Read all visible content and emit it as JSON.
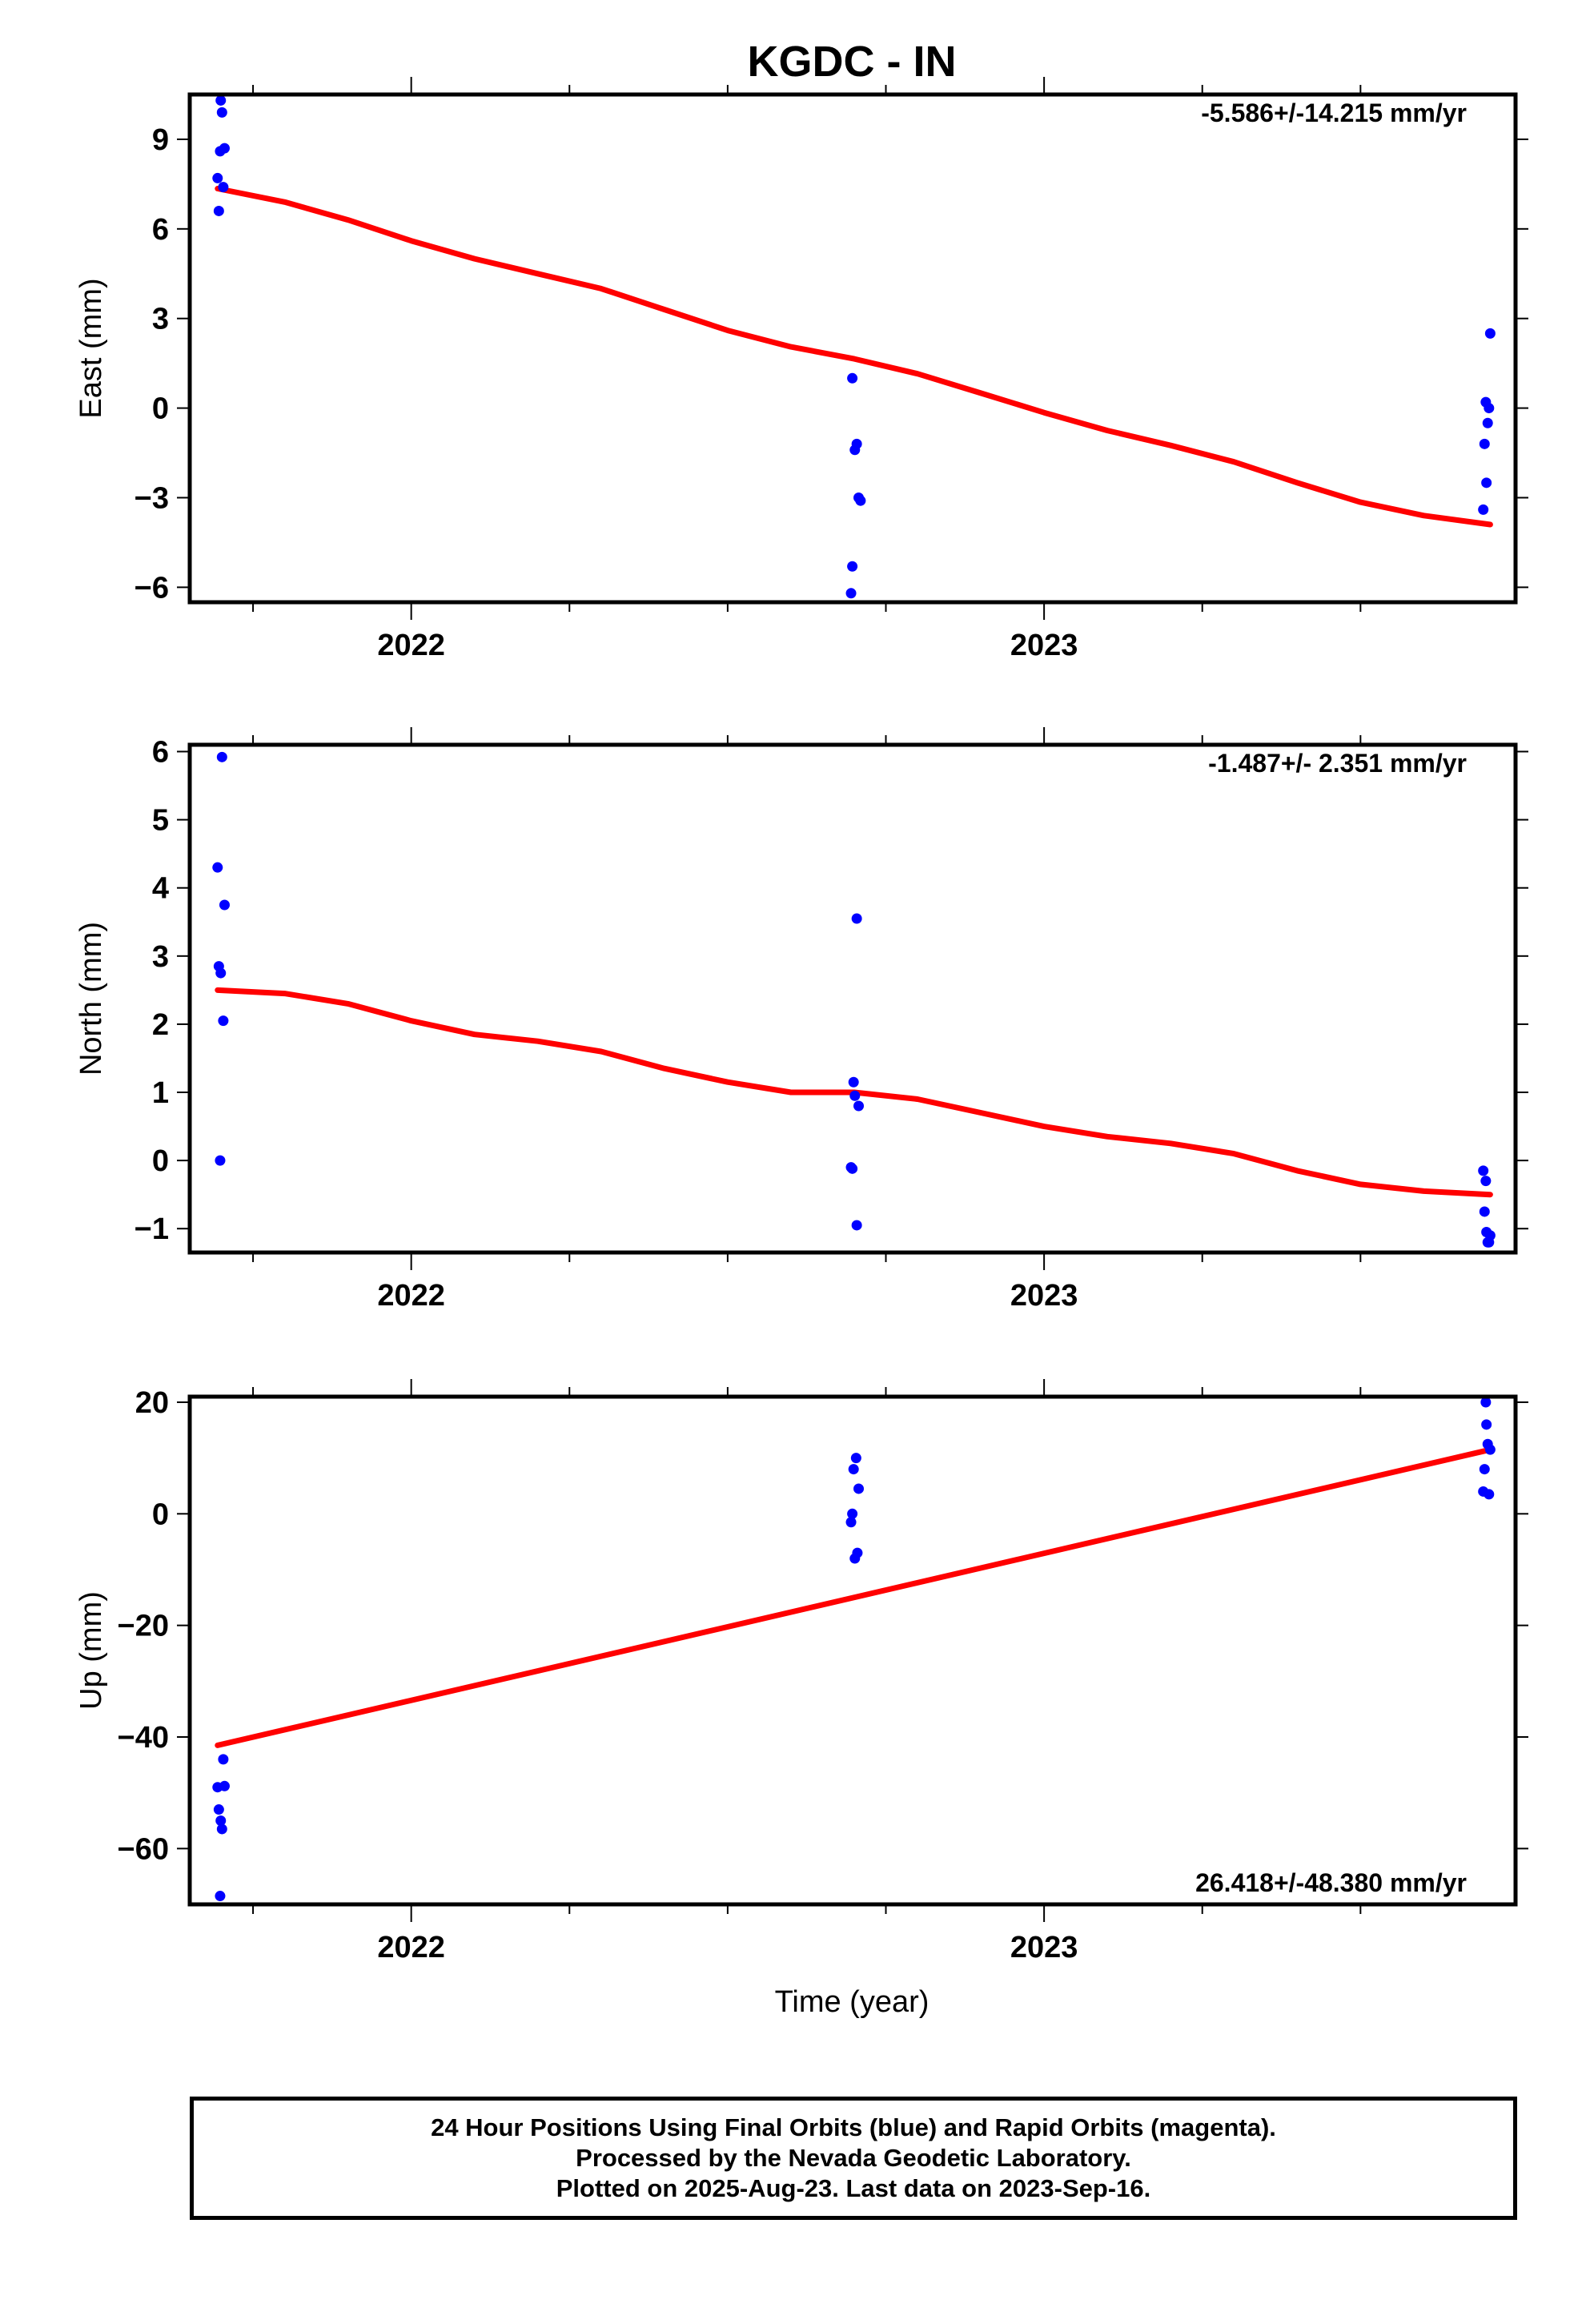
{
  "title": "KGDC - IN",
  "xlabel": "Time (year)",
  "footer": {
    "line1": "24 Hour Positions Using Final Orbits (blue) and Rapid Orbits (magenta).",
    "line2": "Processed by the Nevada Geodetic Laboratory.",
    "line3": "Plotted on 2025-Aug-23. Last data on 2023-Sep-16."
  },
  "colors": {
    "points": "#0000ff",
    "fit": "#ff0000",
    "axes": "#000000"
  },
  "chart_data": [
    {
      "type": "scatter",
      "panel": "east",
      "ylabel": "East (mm)",
      "rate_label": "-5.586+/-14.215 mm/yr",
      "rate_position": "top-right",
      "xlim": [
        2021.65,
        2023.745
      ],
      "ylim": [
        -6.5,
        10.5
      ],
      "x_ticks": [
        2022,
        2023
      ],
      "y_ticks": [
        9,
        6,
        3,
        0,
        -3,
        -6
      ],
      "y_tick_labels": [
        "9",
        "6",
        "3",
        "0",
        "−3",
        "−6"
      ],
      "points": [
        [
          2021.694,
          7.7
        ],
        [
          2021.696,
          6.6
        ],
        [
          2021.698,
          8.6
        ],
        [
          2021.699,
          10.3
        ],
        [
          2021.701,
          9.9
        ],
        [
          2021.703,
          7.4
        ],
        [
          2021.705,
          8.7
        ],
        [
          2022.697,
          1.0
        ],
        [
          2022.701,
          -1.4
        ],
        [
          2022.704,
          -1.2
        ],
        [
          2022.707,
          -3.0
        ],
        [
          2022.71,
          -3.1
        ],
        [
          2022.697,
          -5.3
        ],
        [
          2022.695,
          -6.2
        ],
        [
          2023.694,
          -3.4
        ],
        [
          2023.696,
          -1.2
        ],
        [
          2023.698,
          0.2
        ],
        [
          2023.699,
          -2.5
        ],
        [
          2023.701,
          -0.5
        ],
        [
          2023.703,
          0.0
        ],
        [
          2023.705,
          2.5
        ]
      ],
      "fit": [
        [
          2021.694,
          7.35
        ],
        [
          2021.8,
          6.9
        ],
        [
          2021.9,
          6.3
        ],
        [
          2022.0,
          5.6
        ],
        [
          2022.1,
          5.0
        ],
        [
          2022.2,
          4.5
        ],
        [
          2022.3,
          4.0
        ],
        [
          2022.4,
          3.3
        ],
        [
          2022.5,
          2.6
        ],
        [
          2022.6,
          2.05
        ],
        [
          2022.7,
          1.65
        ],
        [
          2022.8,
          1.15
        ],
        [
          2022.9,
          0.5
        ],
        [
          2023.0,
          -0.15
        ],
        [
          2023.1,
          -0.75
        ],
        [
          2023.2,
          -1.25
        ],
        [
          2023.3,
          -1.8
        ],
        [
          2023.4,
          -2.5
        ],
        [
          2023.5,
          -3.15
        ],
        [
          2023.6,
          -3.6
        ],
        [
          2023.705,
          -3.9
        ]
      ]
    },
    {
      "type": "scatter",
      "panel": "north",
      "ylabel": "North (mm)",
      "rate_label": "-1.487+/- 2.351 mm/yr",
      "rate_position": "top-right",
      "xlim": [
        2021.65,
        2023.745
      ],
      "ylim": [
        -1.35,
        6.1
      ],
      "x_ticks": [
        2022,
        2023
      ],
      "y_ticks": [
        6,
        5,
        4,
        3,
        2,
        1,
        0,
        -1
      ],
      "y_tick_labels": [
        "6",
        "5",
        "4",
        "3",
        "2",
        "1",
        "0",
        "−1"
      ],
      "points": [
        [
          2021.694,
          4.3
        ],
        [
          2021.696,
          2.85
        ],
        [
          2021.698,
          0.0
        ],
        [
          2021.699,
          2.75
        ],
        [
          2021.701,
          5.92
        ],
        [
          2021.703,
          2.05
        ],
        [
          2021.705,
          3.75
        ],
        [
          2022.695,
          -0.1
        ],
        [
          2022.697,
          -0.12
        ],
        [
          2022.699,
          1.15
        ],
        [
          2022.701,
          0.95
        ],
        [
          2022.704,
          3.55
        ],
        [
          2022.707,
          0.8
        ],
        [
          2022.704,
          -0.95
        ],
        [
          2023.694,
          -0.15
        ],
        [
          2023.696,
          -0.75
        ],
        [
          2023.698,
          -0.3
        ],
        [
          2023.699,
          -1.05
        ],
        [
          2023.701,
          -1.2
        ],
        [
          2023.703,
          -1.2
        ],
        [
          2023.705,
          -1.1
        ]
      ],
      "fit": [
        [
          2021.694,
          2.5
        ],
        [
          2021.8,
          2.45
        ],
        [
          2021.9,
          2.3
        ],
        [
          2022.0,
          2.05
        ],
        [
          2022.1,
          1.85
        ],
        [
          2022.2,
          1.75
        ],
        [
          2022.3,
          1.6
        ],
        [
          2022.4,
          1.35
        ],
        [
          2022.5,
          1.15
        ],
        [
          2022.6,
          1.0
        ],
        [
          2022.7,
          1.0
        ],
        [
          2022.8,
          0.9
        ],
        [
          2022.9,
          0.7
        ],
        [
          2023.0,
          0.5
        ],
        [
          2023.1,
          0.35
        ],
        [
          2023.2,
          0.25
        ],
        [
          2023.3,
          0.1
        ],
        [
          2023.4,
          -0.15
        ],
        [
          2023.5,
          -0.35
        ],
        [
          2023.6,
          -0.45
        ],
        [
          2023.705,
          -0.5
        ]
      ]
    },
    {
      "type": "scatter",
      "panel": "up",
      "ylabel": "Up (mm)",
      "rate_label": "26.418+/-48.380 mm/yr",
      "rate_position": "bottom-right",
      "xlim": [
        2021.65,
        2023.745
      ],
      "ylim": [
        -70,
        21
      ],
      "x_ticks": [
        2022,
        2023
      ],
      "y_ticks": [
        20,
        0,
        -20,
        -40,
        -60
      ],
      "y_tick_labels": [
        "20",
        "0",
        "−20",
        "−40",
        "−60"
      ],
      "points": [
        [
          2021.694,
          -49
        ],
        [
          2021.696,
          -53
        ],
        [
          2021.698,
          -68.5
        ],
        [
          2021.699,
          -55
        ],
        [
          2021.701,
          -56.5
        ],
        [
          2021.703,
          -44
        ],
        [
          2021.705,
          -48.8
        ],
        [
          2022.695,
          -1.5
        ],
        [
          2022.697,
          0
        ],
        [
          2022.699,
          8
        ],
        [
          2022.701,
          -8
        ],
        [
          2022.703,
          10
        ],
        [
          2022.705,
          -7
        ],
        [
          2022.707,
          4.5
        ],
        [
          2023.694,
          4
        ],
        [
          2023.696,
          8
        ],
        [
          2023.698,
          20
        ],
        [
          2023.699,
          16
        ],
        [
          2023.701,
          12.5
        ],
        [
          2023.703,
          3.5
        ],
        [
          2023.705,
          11.5
        ]
      ],
      "fit": [
        [
          2021.694,
          -41.5
        ],
        [
          2023.705,
          11.5
        ]
      ]
    }
  ]
}
